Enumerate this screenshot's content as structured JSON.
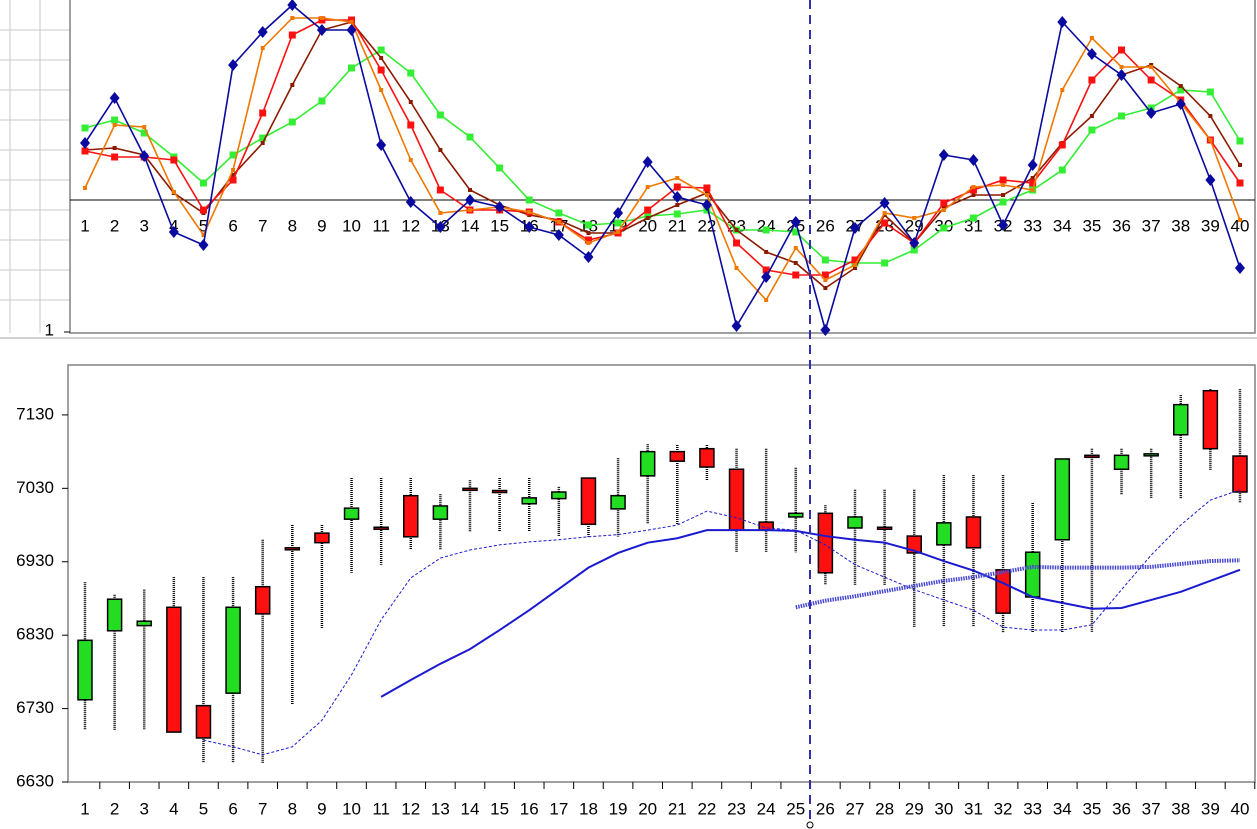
{
  "chart_data": [
    {
      "type": "line",
      "categories": [
        "1",
        "2",
        "3",
        "4",
        "5",
        "6",
        "7",
        "8",
        "9",
        "10",
        "11",
        "12",
        "13",
        "14",
        "15",
        "16",
        "17",
        "18",
        "19",
        "20",
        "21",
        "22",
        "23",
        "24",
        "25",
        "26",
        "27",
        "28",
        "29",
        "30",
        "31",
        "32",
        "33",
        "34",
        "35",
        "36",
        "37",
        "38",
        "39",
        "40"
      ],
      "ylim": [
        1,
        34.2
      ],
      "yticks": [
        1
      ],
      "reference_line": 14.2,
      "series": [
        {
          "color": "#33ee33",
          "marker": "square",
          "values": [
            21.4,
            22.2,
            20.9,
            18.5,
            15.9,
            18.7,
            20.4,
            22.0,
            24.1,
            27.4,
            29.2,
            26.9,
            22.7,
            20.5,
            17.4,
            14.2,
            12.9,
            11.7,
            11.9,
            12.6,
            12.8,
            13.2,
            11.2,
            11.2,
            11.0,
            8.2,
            7.9,
            7.9,
            9.2,
            11.4,
            12.4,
            14.0,
            15.2,
            17.2,
            21.2,
            22.6,
            23.4,
            25.2,
            25.0,
            20.1
          ]
        },
        {
          "color": "#8b1a00",
          "marker": "dot",
          "values": [
            19.2,
            19.4,
            18.7,
            14.9,
            12.9,
            16.7,
            19.9,
            25.7,
            31.2,
            32.0,
            28.4,
            24.0,
            19.2,
            15.2,
            13.7,
            12.7,
            12.2,
            10.9,
            10.9,
            12.4,
            13.7,
            14.9,
            11.2,
            9.0,
            7.9,
            5.4,
            7.4,
            12.7,
            9.9,
            13.4,
            14.7,
            14.7,
            16.4,
            19.9,
            22.6,
            26.7,
            27.7,
            25.6,
            22.6,
            17.7
          ]
        },
        {
          "color": "#ff1010",
          "marker": "square",
          "values": [
            19.1,
            18.5,
            18.5,
            18.2,
            13.2,
            16.2,
            22.9,
            30.7,
            32.2,
            32.2,
            27.2,
            21.7,
            15.2,
            13.2,
            13.2,
            13.0,
            12.0,
            10.2,
            10.9,
            13.2,
            15.5,
            15.4,
            9.9,
            7.2,
            6.7,
            6.7,
            8.2,
            11.9,
            9.9,
            13.9,
            15.2,
            16.2,
            15.9,
            19.7,
            26.2,
            29.2,
            26.2,
            24.2,
            20.2,
            15.9
          ]
        },
        {
          "color": "#f07800",
          "marker": "dot",
          "values": [
            15.4,
            21.7,
            21.5,
            15.0,
            10.7,
            17.2,
            29.4,
            32.4,
            32.4,
            32.0,
            25.2,
            18.2,
            12.9,
            13.2,
            13.5,
            13.0,
            12.0,
            9.9,
            11.0,
            15.5,
            16.4,
            14.7,
            7.4,
            4.2,
            9.4,
            6.2,
            7.7,
            12.9,
            12.4,
            13.2,
            15.5,
            15.7,
            15.2,
            25.2,
            30.4,
            27.5,
            27.5,
            23.9,
            20.2,
            12.2
          ]
        },
        {
          "color": "#0a0aa0",
          "marker": "diamond",
          "values": [
            19.9,
            24.4,
            18.6,
            11.0,
            9.7,
            27.7,
            31.0,
            33.7,
            31.2,
            31.2,
            19.7,
            14.0,
            11.5,
            14.2,
            13.5,
            11.5,
            10.7,
            8.5,
            12.9,
            18.0,
            14.5,
            13.7,
            1.6,
            6.5,
            12.0,
            1.2,
            11.4,
            13.9,
            9.9,
            18.7,
            18.2,
            11.7,
            17.7,
            32.0,
            28.8,
            26.7,
            22.9,
            23.8,
            16.2,
            7.4
          ]
        }
      ]
    },
    {
      "type": "candlestick",
      "categories": [
        "1",
        "2",
        "3",
        "4",
        "5",
        "6",
        "7",
        "8",
        "9",
        "10",
        "11",
        "12",
        "13",
        "14",
        "15",
        "16",
        "17",
        "18",
        "19",
        "20",
        "21",
        "22",
        "23",
        "24",
        "25",
        "26",
        "27",
        "28",
        "29",
        "30",
        "31",
        "32",
        "33",
        "34",
        "35",
        "36",
        "37",
        "38",
        "39",
        "40"
      ],
      "ylim": [
        6630,
        7198
      ],
      "yticks": [
        6630,
        6730,
        6830,
        6930,
        7030,
        7130
      ],
      "up_color": "#22dd22",
      "down_color": "#ff1010",
      "open": [
        6742,
        6836,
        6843,
        6868,
        6734,
        6751,
        6896,
        6949,
        6969,
        6988,
        6977,
        7020,
        6988,
        7030,
        7027,
        7009,
        7016,
        7044,
        7002,
        7047,
        7080,
        7084,
        7056,
        6984,
        6991,
        6996,
        6976,
        6977,
        6965,
        6953,
        6991,
        6919,
        6882,
        6960,
        7075,
        7056,
        7076,
        7103,
        7163,
        7074
      ],
      "high": [
        6902,
        6885,
        6892,
        6909,
        6909,
        6909,
        6960,
        6980,
        6980,
        7044,
        7044,
        7044,
        7022,
        7041,
        7044,
        7044,
        7032,
        7044,
        7071,
        7090,
        7089,
        7089,
        7084,
        7084,
        7058,
        7007,
        7028,
        7028,
        7028,
        7048,
        7048,
        7048,
        7010,
        7070,
        7084,
        7084,
        7084,
        7157,
        7165,
        7165
      ],
      "low": [
        6701,
        6701,
        6701,
        6698,
        6656,
        6656,
        6656,
        6735,
        6840,
        6915,
        6926,
        6946,
        6946,
        6971,
        6971,
        6971,
        6964,
        6964,
        6964,
        6981,
        6981,
        7041,
        6943,
        6943,
        6943,
        6898,
        6898,
        6898,
        6841,
        6841,
        6841,
        6834,
        6834,
        6834,
        6834,
        7021,
        7016,
        7016,
        7055,
        7010
      ],
      "close": [
        6823,
        6879,
        6849,
        6698,
        6690,
        6868,
        6859,
        6948,
        6956,
        7003,
        6976,
        6964,
        7006,
        7029,
        7026,
        7017,
        7025,
        6981,
        7020,
        7080,
        7067,
        7059,
        6973,
        6973,
        6996,
        6915,
        6991,
        6976,
        6942,
        6983,
        6949,
        6860,
        6943,
        7070,
        7074,
        7075,
        7077,
        7144,
        7084,
        7025
      ],
      "series": [
        {
          "color": "#1a1ad0",
          "style": "solid",
          "values": [
            null,
            null,
            null,
            null,
            null,
            null,
            null,
            null,
            null,
            null,
            6746,
            6769,
            6791,
            6811,
            6837,
            6864,
            6893,
            6922,
            6942,
            6956,
            6962,
            6973,
            6973,
            6973,
            6972,
            6965,
            6960,
            6956,
            6945,
            6931,
            6918,
            6901,
            6882,
            6874,
            6866,
            6867,
            6878,
            6889,
            6904,
            6919
          ]
        },
        {
          "color": "#1a1ad0",
          "style": "dashed",
          "values": [
            null,
            null,
            null,
            null,
            6687,
            6678,
            6667,
            6678,
            6714,
            6776,
            6851,
            6908,
            6935,
            6946,
            6953,
            6957,
            6960,
            6964,
            6967,
            6973,
            6980,
            6999,
            6990,
            6976,
            6973,
            6953,
            6926,
            6909,
            6892,
            6878,
            6864,
            6841,
            6837,
            6837,
            6844,
            6892,
            6939,
            6980,
            7014,
            7028
          ]
        },
        {
          "color": "#4a4ad0",
          "style": "dotted",
          "values": [
            null,
            null,
            null,
            null,
            null,
            null,
            null,
            null,
            null,
            null,
            null,
            null,
            null,
            null,
            null,
            null,
            null,
            null,
            null,
            null,
            null,
            null,
            null,
            null,
            6868,
            6877,
            6883,
            6890,
            6897,
            6904,
            6909,
            6916,
            6923,
            6922,
            6922,
            6922,
            6923,
            6927,
            6931,
            6932
          ]
        }
      ]
    }
  ]
}
